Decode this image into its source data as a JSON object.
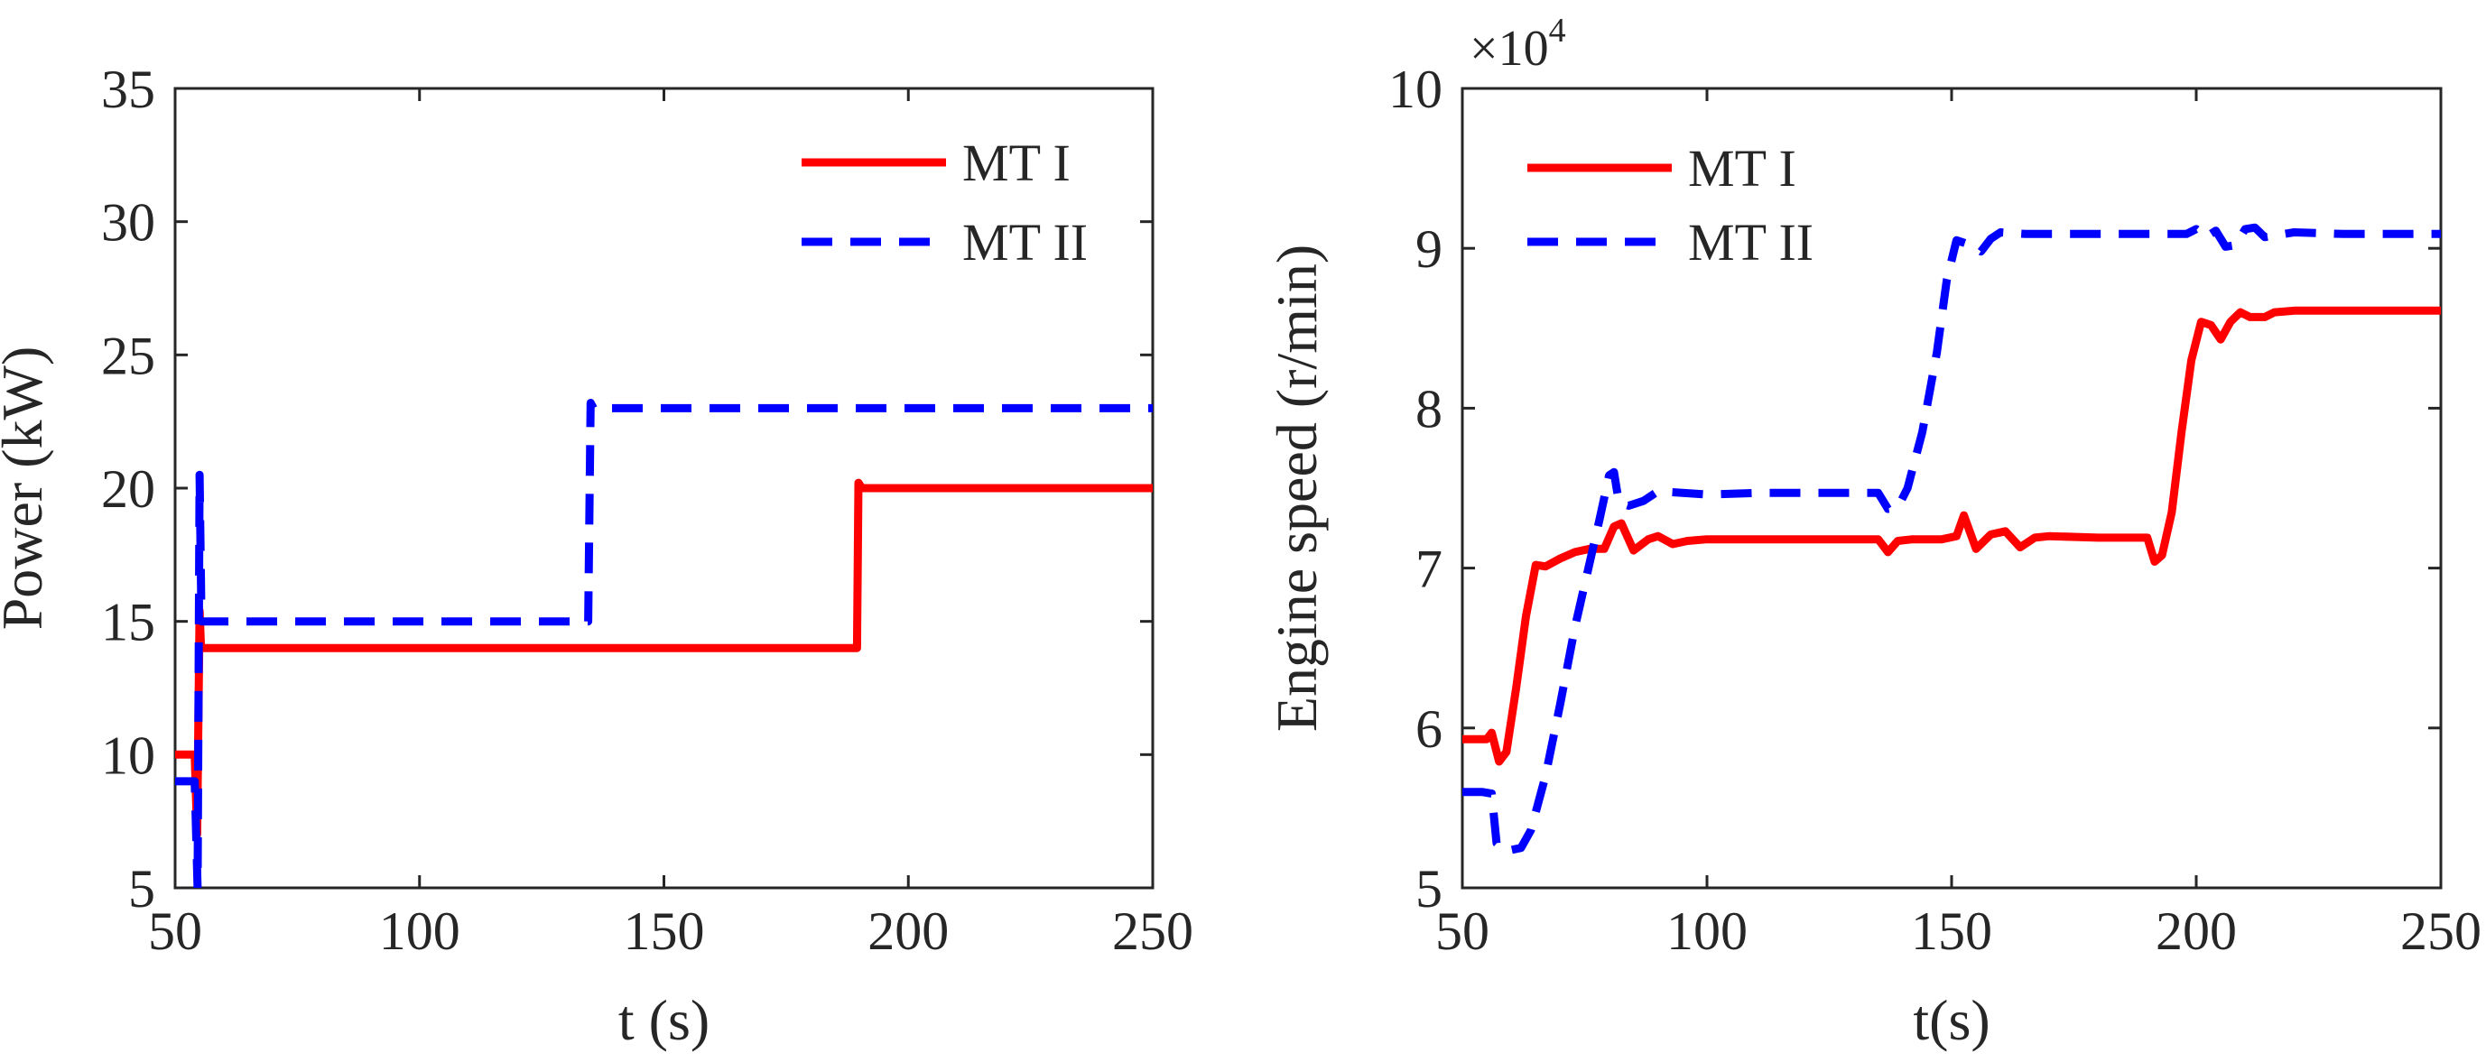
{
  "chart_data": [
    {
      "type": "line",
      "title": "",
      "xlabel": "t (s)",
      "ylabel": "Power (kW)",
      "xlim": [
        50,
        250
      ],
      "ylim": [
        5,
        35
      ],
      "xticks": [
        50,
        100,
        150,
        200,
        250
      ],
      "yticks": [
        5,
        10,
        15,
        20,
        25,
        30,
        35
      ],
      "legend_position": "top-right",
      "series": [
        {
          "name": "MT I",
          "color": "#ff0000",
          "style": "solid",
          "points": [
            [
              50,
              10
            ],
            [
              54,
              10
            ],
            [
              54.5,
              7
            ],
            [
              55,
              15.4
            ],
            [
              55.3,
              14
            ],
            [
              60,
              14
            ],
            [
              100,
              14
            ],
            [
              150,
              14
            ],
            [
              189.5,
              14
            ],
            [
              189.8,
              20.2
            ],
            [
              190.5,
              20
            ],
            [
              250,
              20
            ]
          ]
        },
        {
          "name": "MT II",
          "color": "#0000ff",
          "style": "dashed",
          "points": [
            [
              50,
              9
            ],
            [
              54,
              9
            ],
            [
              54.6,
              5
            ],
            [
              55,
              20.5
            ],
            [
              55.4,
              15
            ],
            [
              60,
              15
            ],
            [
              100,
              15
            ],
            [
              134.5,
              15
            ],
            [
              135,
              23.2
            ],
            [
              135.6,
              23
            ],
            [
              150,
              23
            ],
            [
              200,
              23
            ],
            [
              250,
              23
            ]
          ]
        }
      ]
    },
    {
      "type": "line",
      "title": "",
      "xlabel": "t(s)",
      "ylabel": "Engine speed (r/min)",
      "xlim": [
        50,
        250
      ],
      "ylim": [
        50000,
        100000
      ],
      "xticks": [
        50,
        100,
        150,
        200,
        250
      ],
      "yticks": [
        5,
        6,
        7,
        8,
        9,
        10
      ],
      "ytick_multiplier": "×10",
      "ytick_multiplier_exponent": "4",
      "legend_position": "top-left",
      "series": [
        {
          "name": "MT I",
          "color": "#ff0000",
          "style": "solid",
          "points": [
            [
              50,
              59300
            ],
            [
              55,
              59300
            ],
            [
              56,
              59700
            ],
            [
              57.5,
              57900
            ],
            [
              59,
              58500
            ],
            [
              61,
              62500
            ],
            [
              63,
              67000
            ],
            [
              65,
              70200
            ],
            [
              67,
              70100
            ],
            [
              70,
              70600
            ],
            [
              73,
              71000
            ],
            [
              76,
              71200
            ],
            [
              79,
              71200
            ],
            [
              81,
              72600
            ],
            [
              82.5,
              72800
            ],
            [
              85,
              71100
            ],
            [
              88,
              71800
            ],
            [
              90,
              72000
            ],
            [
              93,
              71500
            ],
            [
              96,
              71700
            ],
            [
              100,
              71800
            ],
            [
              110,
              71800
            ],
            [
              120,
              71800
            ],
            [
              130,
              71800
            ],
            [
              135,
              71800
            ],
            [
              137,
              71000
            ],
            [
              139,
              71700
            ],
            [
              142,
              71800
            ],
            [
              148,
              71800
            ],
            [
              151,
              72000
            ],
            [
              152.5,
              73300
            ],
            [
              155,
              71200
            ],
            [
              158,
              72100
            ],
            [
              161,
              72300
            ],
            [
              164,
              71300
            ],
            [
              167,
              71900
            ],
            [
              170,
              72000
            ],
            [
              180,
              71900
            ],
            [
              190,
              71900
            ],
            [
              191.5,
              70400
            ],
            [
              193,
              70800
            ],
            [
              195,
              73500
            ],
            [
              197,
              78500
            ],
            [
              199,
              83000
            ],
            [
              201,
              85400
            ],
            [
              203,
              85200
            ],
            [
              205,
              84300
            ],
            [
              207,
              85400
            ],
            [
              209,
              86000
            ],
            [
              211,
              85700
            ],
            [
              214,
              85700
            ],
            [
              216,
              86000
            ],
            [
              220,
              86100
            ],
            [
              250,
              86100
            ]
          ]
        },
        {
          "name": "MT II",
          "color": "#0000ff",
          "style": "dashed",
          "points": [
            [
              50,
              56000
            ],
            [
              54,
              56000
            ],
            [
              56,
              55900
            ],
            [
              57,
              52800
            ],
            [
              59,
              52300
            ],
            [
              62,
              52500
            ],
            [
              64,
              53600
            ],
            [
              67,
              57000
            ],
            [
              70,
              61500
            ],
            [
              73,
              66300
            ],
            [
              76,
              70300
            ],
            [
              78,
              73000
            ],
            [
              80,
              75800
            ],
            [
              81,
              76000
            ],
            [
              82,
              74100
            ],
            [
              84,
              73900
            ],
            [
              87,
              74200
            ],
            [
              90,
              74800
            ],
            [
              95,
              74700
            ],
            [
              100,
              74600
            ],
            [
              110,
              74700
            ],
            [
              120,
              74700
            ],
            [
              135,
              74700
            ],
            [
              137,
              73700
            ],
            [
              139,
              73800
            ],
            [
              141,
              75000
            ],
            [
              144,
              78500
            ],
            [
              147,
              83500
            ],
            [
              149,
              88000
            ],
            [
              151,
              90500
            ],
            [
              154,
              90200
            ],
            [
              156,
              89800
            ],
            [
              158,
              90600
            ],
            [
              160,
              91000
            ],
            [
              165,
              90900
            ],
            [
              170,
              90900
            ],
            [
              180,
              90900
            ],
            [
              190,
              90900
            ],
            [
              198,
              90900
            ],
            [
              200,
              91200
            ],
            [
              202,
              90700
            ],
            [
              204,
              91100
            ],
            [
              206,
              90100
            ],
            [
              208,
              90200
            ],
            [
              210,
              91200
            ],
            [
              212,
              91300
            ],
            [
              214,
              90700
            ],
            [
              220,
              91000
            ],
            [
              230,
              90900
            ],
            [
              250,
              90900
            ]
          ]
        }
      ]
    }
  ]
}
